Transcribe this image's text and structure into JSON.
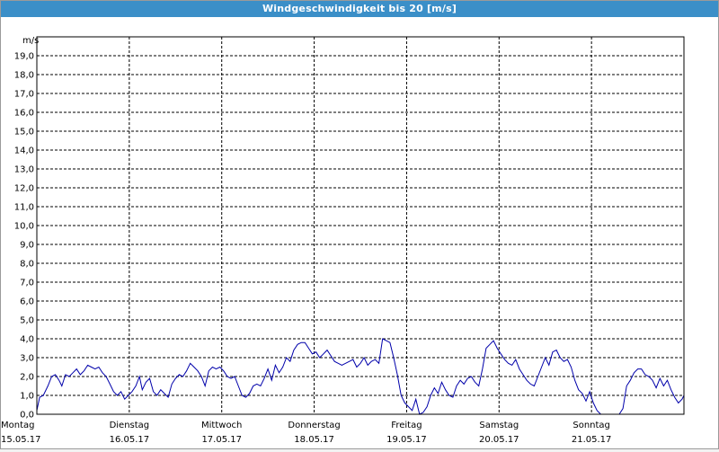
{
  "window": {
    "title": "Windgeschwindigkeit bis 20 [m/s]"
  },
  "chart_data": {
    "type": "line",
    "title": "Windgeschwindigkeit bis 20 [m/s]",
    "ylabel": "m/s",
    "ylim": [
      0,
      20
    ],
    "xlim": [
      0,
      7
    ],
    "grid": true,
    "line_color": "#0000aa",
    "yticks": [
      "0,0",
      "1,0",
      "2,0",
      "3,0",
      "4,0",
      "5,0",
      "6,0",
      "7,0",
      "8,0",
      "9,0",
      "10,0",
      "11,0",
      "12,0",
      "13,0",
      "14,0",
      "15,0",
      "16,0",
      "17,0",
      "18,0",
      "19,0"
    ],
    "x_ticks": [
      {
        "day": "Montag",
        "date": "15.05.17"
      },
      {
        "day": "Dienstag",
        "date": "16.05.17"
      },
      {
        "day": "Mittwoch",
        "date": "17.05.17"
      },
      {
        "day": "Donnerstag",
        "date": "18.05.17"
      },
      {
        "day": "Freitag",
        "date": "19.05.17"
      },
      {
        "day": "Samstag",
        "date": "20.05.17"
      },
      {
        "day": "Sonntag",
        "date": "21.05.17"
      }
    ],
    "series": [
      {
        "points": [
          [
            0.0,
            0.2
          ],
          [
            0.03,
            0.9
          ],
          [
            0.07,
            1.0
          ],
          [
            0.12,
            1.5
          ],
          [
            0.16,
            2.0
          ],
          [
            0.2,
            2.1
          ],
          [
            0.24,
            1.8
          ],
          [
            0.27,
            1.5
          ],
          [
            0.31,
            2.1
          ],
          [
            0.35,
            2.0
          ],
          [
            0.39,
            2.2
          ],
          [
            0.43,
            2.4
          ],
          [
            0.47,
            2.1
          ],
          [
            0.51,
            2.3
          ],
          [
            0.55,
            2.6
          ],
          [
            0.59,
            2.5
          ],
          [
            0.63,
            2.4
          ],
          [
            0.67,
            2.5
          ],
          [
            0.71,
            2.2
          ],
          [
            0.75,
            2.0
          ],
          [
            0.79,
            1.6
          ],
          [
            0.83,
            1.2
          ],
          [
            0.87,
            1.0
          ],
          [
            0.91,
            1.2
          ],
          [
            0.95,
            0.8
          ],
          [
            0.99,
            1.0
          ],
          [
            1.03,
            1.2
          ],
          [
            1.07,
            1.5
          ],
          [
            1.11,
            2.0
          ],
          [
            1.14,
            1.3
          ],
          [
            1.18,
            1.7
          ],
          [
            1.22,
            1.9
          ],
          [
            1.26,
            1.2
          ],
          [
            1.3,
            1.0
          ],
          [
            1.34,
            1.3
          ],
          [
            1.38,
            1.1
          ],
          [
            1.42,
            0.9
          ],
          [
            1.46,
            1.6
          ],
          [
            1.5,
            1.9
          ],
          [
            1.54,
            2.1
          ],
          [
            1.58,
            2.0
          ],
          [
            1.62,
            2.3
          ],
          [
            1.66,
            2.7
          ],
          [
            1.7,
            2.5
          ],
          [
            1.74,
            2.3
          ],
          [
            1.78,
            2.0
          ],
          [
            1.82,
            1.5
          ],
          [
            1.86,
            2.3
          ],
          [
            1.9,
            2.5
          ],
          [
            1.94,
            2.4
          ],
          [
            1.98,
            2.5
          ],
          [
            2.02,
            2.3
          ],
          [
            2.06,
            2.0
          ],
          [
            2.1,
            1.9
          ],
          [
            2.14,
            2.0
          ],
          [
            2.18,
            1.5
          ],
          [
            2.22,
            1.0
          ],
          [
            2.26,
            0.9
          ],
          [
            2.3,
            1.1
          ],
          [
            2.34,
            1.5
          ],
          [
            2.38,
            1.6
          ],
          [
            2.42,
            1.5
          ],
          [
            2.46,
            1.9
          ],
          [
            2.5,
            2.4
          ],
          [
            2.54,
            1.8
          ],
          [
            2.58,
            2.6
          ],
          [
            2.62,
            2.2
          ],
          [
            2.66,
            2.5
          ],
          [
            2.7,
            3.0
          ],
          [
            2.74,
            2.8
          ],
          [
            2.78,
            3.4
          ],
          [
            2.82,
            3.7
          ],
          [
            2.86,
            3.8
          ],
          [
            2.9,
            3.8
          ],
          [
            2.94,
            3.5
          ],
          [
            2.98,
            3.2
          ],
          [
            3.02,
            3.3
          ],
          [
            3.06,
            3.0
          ],
          [
            3.1,
            3.2
          ],
          [
            3.14,
            3.4
          ],
          [
            3.18,
            3.1
          ],
          [
            3.22,
            2.8
          ],
          [
            3.26,
            2.7
          ],
          [
            3.3,
            2.6
          ],
          [
            3.34,
            2.7
          ],
          [
            3.38,
            2.8
          ],
          [
            3.42,
            2.9
          ],
          [
            3.46,
            2.5
          ],
          [
            3.5,
            2.7
          ],
          [
            3.54,
            3.0
          ],
          [
            3.58,
            2.6
          ],
          [
            3.62,
            2.8
          ],
          [
            3.66,
            2.9
          ],
          [
            3.7,
            2.7
          ],
          [
            3.74,
            4.0
          ],
          [
            3.78,
            3.9
          ],
          [
            3.82,
            3.8
          ],
          [
            3.86,
            3.0
          ],
          [
            3.9,
            2.1
          ],
          [
            3.94,
            1.0
          ],
          [
            3.98,
            0.6
          ],
          [
            4.02,
            0.4
          ],
          [
            4.06,
            0.2
          ],
          [
            4.1,
            0.8
          ],
          [
            4.14,
            0.0
          ],
          [
            4.18,
            0.1
          ],
          [
            4.22,
            0.4
          ],
          [
            4.26,
            1.0
          ],
          [
            4.3,
            1.4
          ],
          [
            4.34,
            1.1
          ],
          [
            4.38,
            1.7
          ],
          [
            4.42,
            1.3
          ],
          [
            4.46,
            1.0
          ],
          [
            4.5,
            0.9
          ],
          [
            4.54,
            1.5
          ],
          [
            4.58,
            1.8
          ],
          [
            4.62,
            1.6
          ],
          [
            4.66,
            1.9
          ],
          [
            4.7,
            2.0
          ],
          [
            4.74,
            1.7
          ],
          [
            4.78,
            1.5
          ],
          [
            4.82,
            2.4
          ],
          [
            4.86,
            3.5
          ],
          [
            4.9,
            3.7
          ],
          [
            4.94,
            3.9
          ],
          [
            4.98,
            3.5
          ],
          [
            5.02,
            3.2
          ],
          [
            5.06,
            2.9
          ],
          [
            5.1,
            2.7
          ],
          [
            5.14,
            2.6
          ],
          [
            5.18,
            2.9
          ],
          [
            5.22,
            2.4
          ],
          [
            5.26,
            2.1
          ],
          [
            5.3,
            1.8
          ],
          [
            5.34,
            1.6
          ],
          [
            5.38,
            1.5
          ],
          [
            5.42,
            2.0
          ],
          [
            5.46,
            2.5
          ],
          [
            5.5,
            3.0
          ],
          [
            5.54,
            2.6
          ],
          [
            5.58,
            3.3
          ],
          [
            5.62,
            3.4
          ],
          [
            5.66,
            3.0
          ],
          [
            5.7,
            2.8
          ],
          [
            5.74,
            2.9
          ],
          [
            5.78,
            2.5
          ],
          [
            5.82,
            1.8
          ],
          [
            5.86,
            1.3
          ],
          [
            5.9,
            1.1
          ],
          [
            5.94,
            0.7
          ],
          [
            5.98,
            1.2
          ],
          [
            6.02,
            0.6
          ],
          [
            6.06,
            0.2
          ],
          [
            6.1,
            0.0
          ],
          [
            6.3,
            0.0
          ],
          [
            6.34,
            0.3
          ],
          [
            6.38,
            1.5
          ],
          [
            6.42,
            1.8
          ],
          [
            6.46,
            2.2
          ],
          [
            6.5,
            2.4
          ],
          [
            6.54,
            2.4
          ],
          [
            6.58,
            2.1
          ],
          [
            6.62,
            2.0
          ],
          [
            6.66,
            1.8
          ],
          [
            6.7,
            1.4
          ],
          [
            6.74,
            1.9
          ],
          [
            6.78,
            1.5
          ],
          [
            6.82,
            1.8
          ],
          [
            6.86,
            1.3
          ],
          [
            6.9,
            0.9
          ],
          [
            6.94,
            0.6
          ],
          [
            6.98,
            0.8
          ],
          [
            7.0,
            1.0
          ]
        ]
      }
    ]
  }
}
